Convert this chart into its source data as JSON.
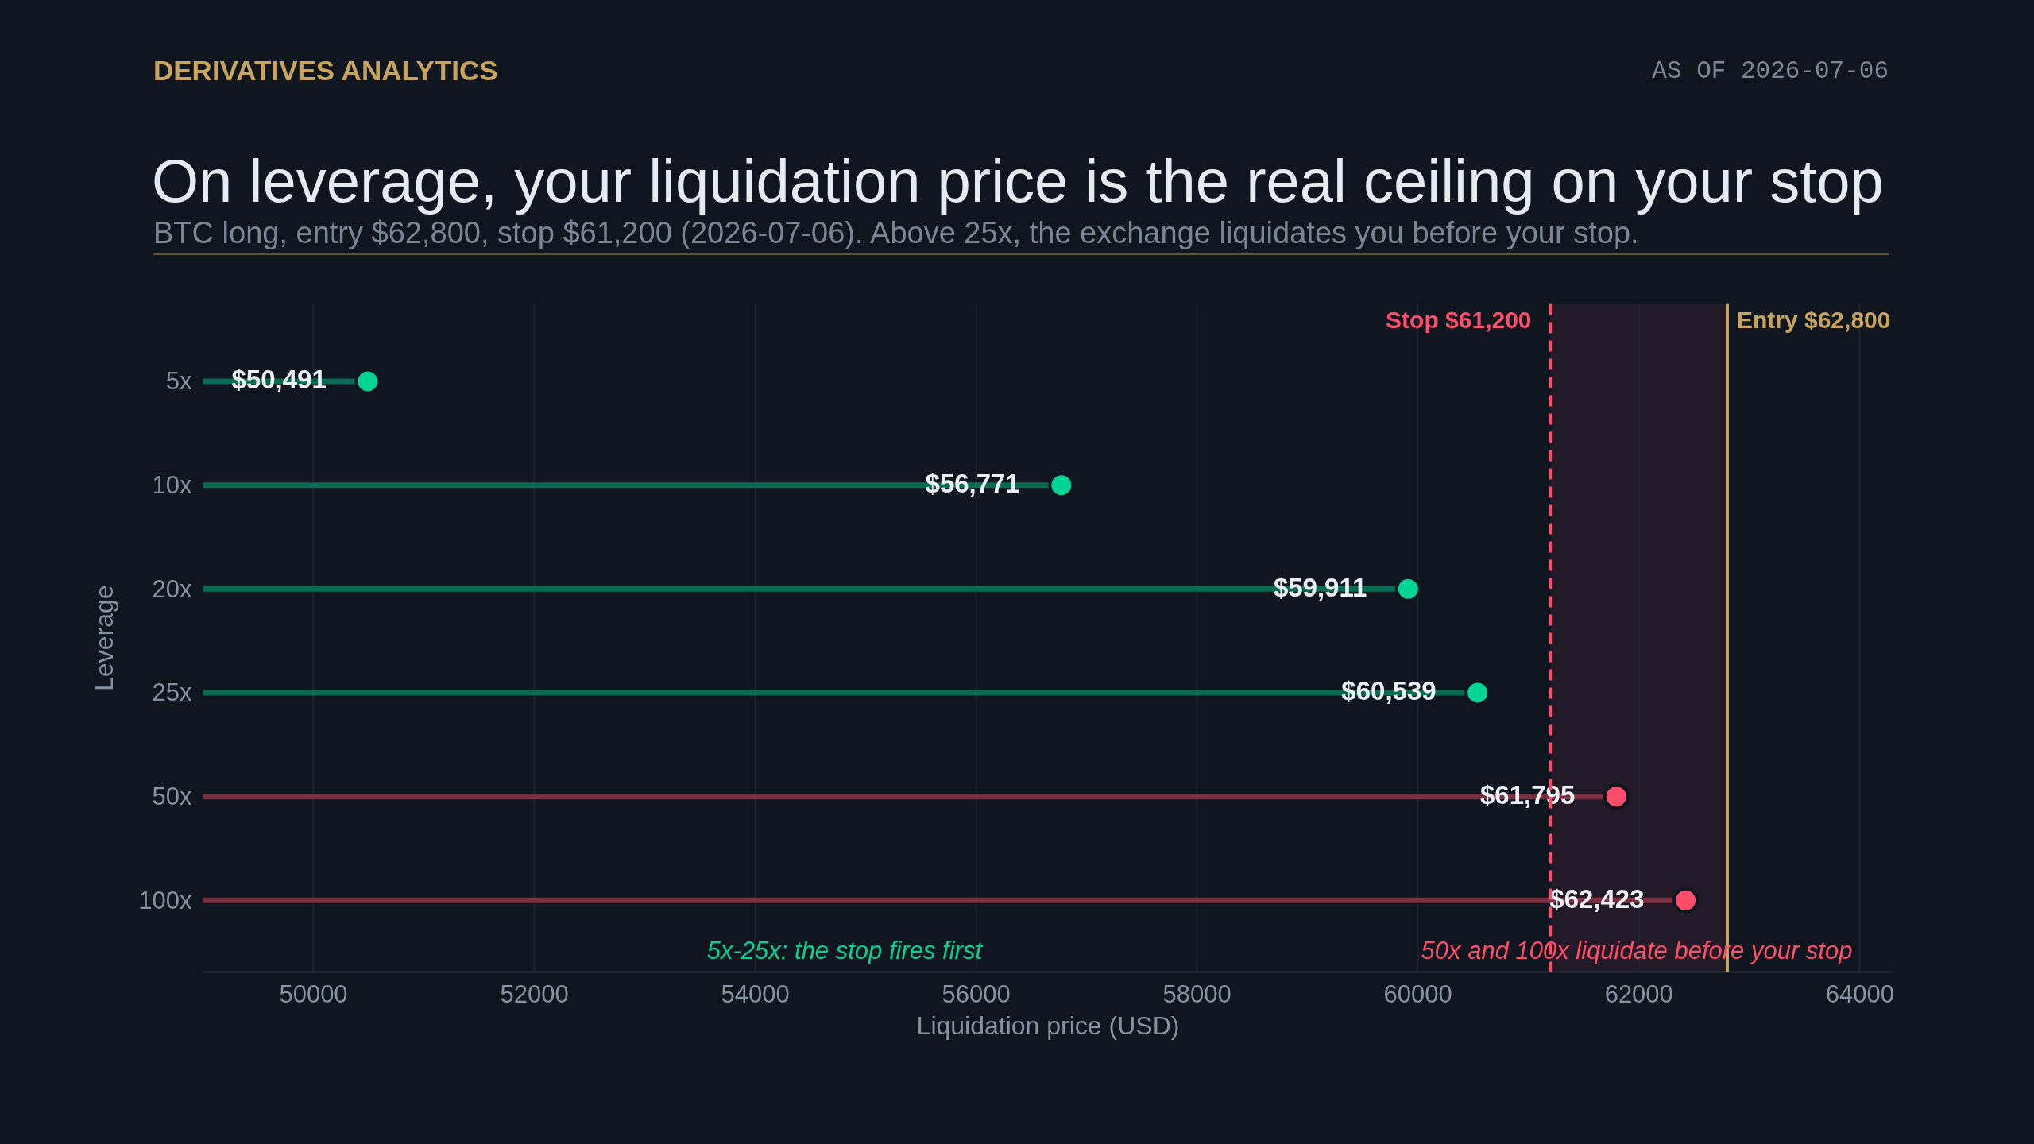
{
  "chart_data": {
    "type": "lollipop",
    "orientation": "horizontal",
    "title": "On leverage, your liquidation price is the real ceiling on your stop",
    "subtitle": "BTC long, entry $62,800, stop $61,200 (2026-07-06). Above 25x, the exchange liquidates you before your stop.",
    "xlabel": "Liquidation price (USD)",
    "ylabel": "Leverage",
    "categories": [
      "5x",
      "10x",
      "20x",
      "25x",
      "50x",
      "100x"
    ],
    "values": [
      50491,
      56771,
      59911,
      60539,
      61795,
      62423
    ],
    "value_labels": [
      "$50,491",
      "$56,771",
      "$59,911",
      "$60,539",
      "$61,795",
      "$62,423"
    ],
    "colors": [
      "#00d492",
      "#00d492",
      "#00d492",
      "#00d492",
      "#ff4d6a",
      "#ff4d6a"
    ],
    "marker": "circle",
    "xlim": [
      49000,
      64300
    ],
    "xticks": [
      50000,
      52000,
      54000,
      56000,
      58000,
      60000,
      62000,
      64000
    ],
    "grid": "x",
    "ref_lines": [
      {
        "axis": "x",
        "value": 61200,
        "label": "Stop $61,200",
        "color": "#ff4d6a",
        "line_style": "dashed"
      },
      {
        "axis": "x",
        "value": 62800,
        "label": "Entry $62,800",
        "color": "#c9a45c",
        "line_style": "solid"
      }
    ],
    "bands": [
      {
        "axis": "x",
        "from": 61200,
        "to": 62800,
        "color": "#221a27"
      }
    ],
    "annotations": [
      "DERIVATIVES ANALYTICS",
      "AS OF 2026-07-06",
      "5x-25x: the stop fires first",
      "50x and 100x liquidate before your stop"
    ]
  }
}
